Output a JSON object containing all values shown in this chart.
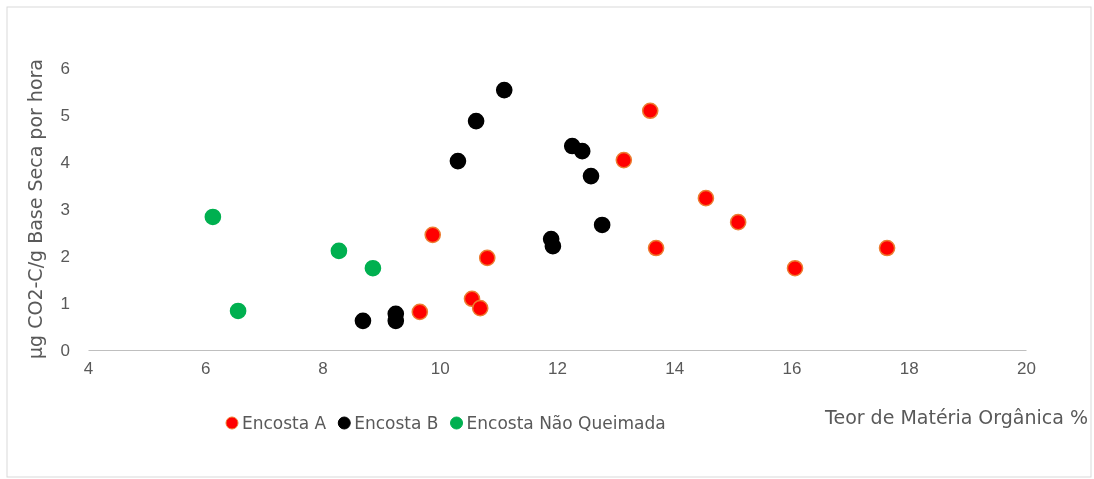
{
  "chart_data": {
    "type": "scatter",
    "xlabel": "Teor de Matéria Orgânica %",
    "ylabel": "µg CO2-C/g Base Seca por hora",
    "xlim": [
      4,
      20
    ],
    "ylim": [
      0,
      6
    ],
    "xticks": [
      4,
      6,
      8,
      10,
      12,
      14,
      16,
      18,
      20
    ],
    "yticks": [
      0,
      1,
      2,
      3,
      4,
      5,
      6
    ],
    "grid": false,
    "legend": "bottom",
    "marker": "circle",
    "series": [
      {
        "name": "Encosta A",
        "color": "#ff0000",
        "x": [
          13.59,
          13.14,
          14.54,
          15.09,
          13.69,
          17.63,
          16.06,
          9.88,
          10.81,
          10.55,
          10.69,
          9.66
        ],
        "values": [
          5.09,
          4.04,
          3.23,
          2.72,
          2.17,
          2.17,
          1.74,
          2.45,
          1.96,
          1.09,
          0.89,
          0.81
        ]
      },
      {
        "name": "Encosta B",
        "color": "#000000",
        "x": [
          11.1,
          10.62,
          10.31,
          12.26,
          12.43,
          12.58,
          12.77,
          11.9,
          11.93,
          8.69,
          9.25,
          9.25
        ],
        "values": [
          5.53,
          4.87,
          4.02,
          4.34,
          4.23,
          3.7,
          2.66,
          2.36,
          2.21,
          0.62,
          0.77,
          0.62
        ]
      },
      {
        "name": "Encosta Não Queimada",
        "color": "#00b050",
        "x": [
          6.13,
          8.28,
          8.86,
          6.56
        ],
        "values": [
          2.83,
          2.11,
          1.74,
          0.83
        ]
      }
    ]
  }
}
